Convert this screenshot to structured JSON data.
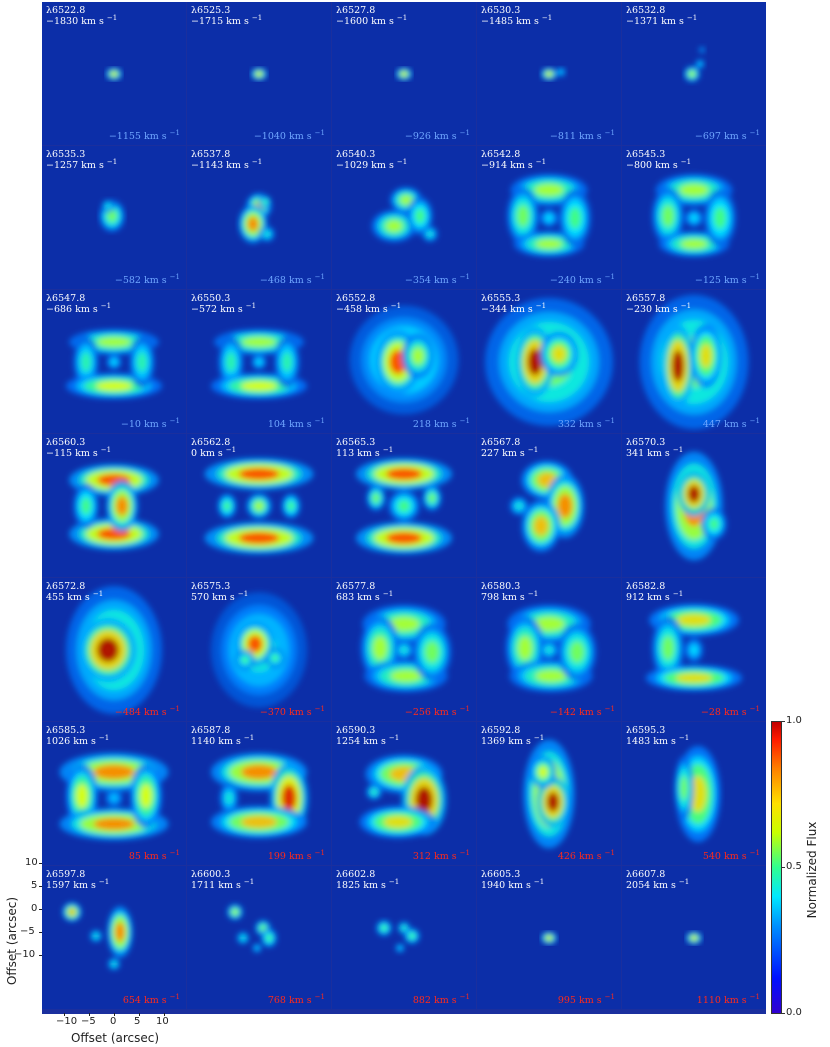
{
  "panels": [
    {
      "wl": "λ6522.8",
      "vel": "−1830",
      "sub": "−1155",
      "subcolor": "blue",
      "form": "dot"
    },
    {
      "wl": "λ6525.3",
      "vel": "−1715",
      "sub": "−1040",
      "subcolor": "blue",
      "form": "dot"
    },
    {
      "wl": "λ6527.8",
      "vel": "−1600",
      "sub": "−926",
      "subcolor": "blue",
      "form": "dot"
    },
    {
      "wl": "λ6530.3",
      "vel": "−1485",
      "sub": "−811",
      "subcolor": "blue",
      "form": "dot2"
    },
    {
      "wl": "λ6532.8",
      "vel": "−1371",
      "sub": "−697",
      "subcolor": "blue",
      "form": "dot3"
    },
    {
      "wl": "λ6535.3",
      "vel": "−1257",
      "sub": "−582",
      "subcolor": "blue",
      "form": "small"
    },
    {
      "wl": "λ6537.8",
      "vel": "−1143",
      "sub": "−468",
      "subcolor": "blue",
      "form": "arc"
    },
    {
      "wl": "λ6540.3",
      "vel": "−1029",
      "sub": "−354",
      "subcolor": "blue",
      "form": "arc2"
    },
    {
      "wl": "λ6542.8",
      "vel": "−914",
      "sub": "−240",
      "subcolor": "blue",
      "form": "ring"
    },
    {
      "wl": "λ6545.3",
      "vel": "−800",
      "sub": "−125",
      "subcolor": "blue",
      "form": "ring"
    },
    {
      "wl": "λ6547.8",
      "vel": "−686",
      "sub": "−10",
      "subcolor": "blue",
      "form": "ring2"
    },
    {
      "wl": "λ6550.3",
      "vel": "−572",
      "sub": "104",
      "subcolor": "blue",
      "form": "ring2"
    },
    {
      "wl": "λ6552.8",
      "vel": "−458",
      "sub": "218",
      "subcolor": "blue",
      "form": "blob"
    },
    {
      "wl": "λ6555.3",
      "vel": "−344",
      "sub": "332",
      "subcolor": "blue",
      "form": "bigblob"
    },
    {
      "wl": "λ6557.8",
      "vel": "−230",
      "sub": "447",
      "subcolor": "blue",
      "form": "bigblob2"
    },
    {
      "wl": "λ6560.3",
      "vel": "−115",
      "sub": "",
      "subcolor": "blue",
      "form": "bars"
    },
    {
      "wl": "λ6562.8",
      "vel": "0",
      "sub": "",
      "subcolor": "blue",
      "form": "bars2"
    },
    {
      "wl": "λ6565.3",
      "vel": "113",
      "sub": "",
      "subcolor": "blue",
      "form": "bars3"
    },
    {
      "wl": "λ6567.8",
      "vel": "227",
      "sub": "",
      "subcolor": "blue",
      "form": "sshape"
    },
    {
      "wl": "λ6570.3",
      "vel": "341",
      "sub": "",
      "subcolor": "blue",
      "form": "column"
    },
    {
      "wl": "λ6572.8",
      "vel": "455",
      "sub": "−484",
      "subcolor": "red",
      "form": "bigblob3"
    },
    {
      "wl": "λ6575.3",
      "vel": "570",
      "sub": "−370",
      "subcolor": "red",
      "form": "blob2"
    },
    {
      "wl": "λ6577.8",
      "vel": "683",
      "sub": "−256",
      "subcolor": "red",
      "form": "ring3"
    },
    {
      "wl": "λ6580.3",
      "vel": "798",
      "sub": "−142",
      "subcolor": "red",
      "form": "ring3"
    },
    {
      "wl": "λ6582.8",
      "vel": "912",
      "sub": "−28",
      "subcolor": "red",
      "form": "ring4"
    },
    {
      "wl": "λ6585.3",
      "vel": "1026",
      "sub": "85",
      "subcolor": "red",
      "form": "ring5"
    },
    {
      "wl": "λ6587.8",
      "vel": "1140",
      "sub": "199",
      "subcolor": "red",
      "form": "arc3"
    },
    {
      "wl": "λ6590.3",
      "vel": "1254",
      "sub": "312",
      "subcolor": "red",
      "form": "arc4"
    },
    {
      "wl": "λ6592.8",
      "vel": "1369",
      "sub": "426",
      "subcolor": "red",
      "form": "arc5"
    },
    {
      "wl": "λ6595.3",
      "vel": "1483",
      "sub": "540",
      "subcolor": "red",
      "form": "arc6"
    },
    {
      "wl": "λ6597.8",
      "vel": "1597",
      "sub": "654",
      "subcolor": "red",
      "form": "few"
    },
    {
      "wl": "λ6600.3",
      "vel": "1711",
      "sub": "768",
      "subcolor": "red",
      "form": "few2"
    },
    {
      "wl": "λ6602.8",
      "vel": "1825",
      "sub": "882",
      "subcolor": "red",
      "form": "few3"
    },
    {
      "wl": "λ6605.3",
      "vel": "1940",
      "sub": "995",
      "subcolor": "red",
      "form": "dot"
    },
    {
      "wl": "λ6607.8",
      "vel": "2054",
      "sub": "1110",
      "subcolor": "red",
      "form": "dot"
    }
  ],
  "units": "km s",
  "unit_exp": "−1",
  "colorbar": {
    "title": "Normalized Flux",
    "ticks": [
      "1.0",
      "0.5",
      "0.0"
    ]
  },
  "xaxis": {
    "label": "Offset (arcsec)",
    "ticks": [
      "−10",
      "−5",
      "0",
      "5",
      "10"
    ]
  },
  "yaxis": {
    "label": "Offset (arcsec)",
    "ticks": [
      "10",
      "5",
      "0",
      "−5",
      "−10"
    ]
  },
  "colors": {
    "background": "#0c2ea8",
    "sub_blue": "#6fa6ff",
    "sub_red": "#ff2a1a"
  }
}
